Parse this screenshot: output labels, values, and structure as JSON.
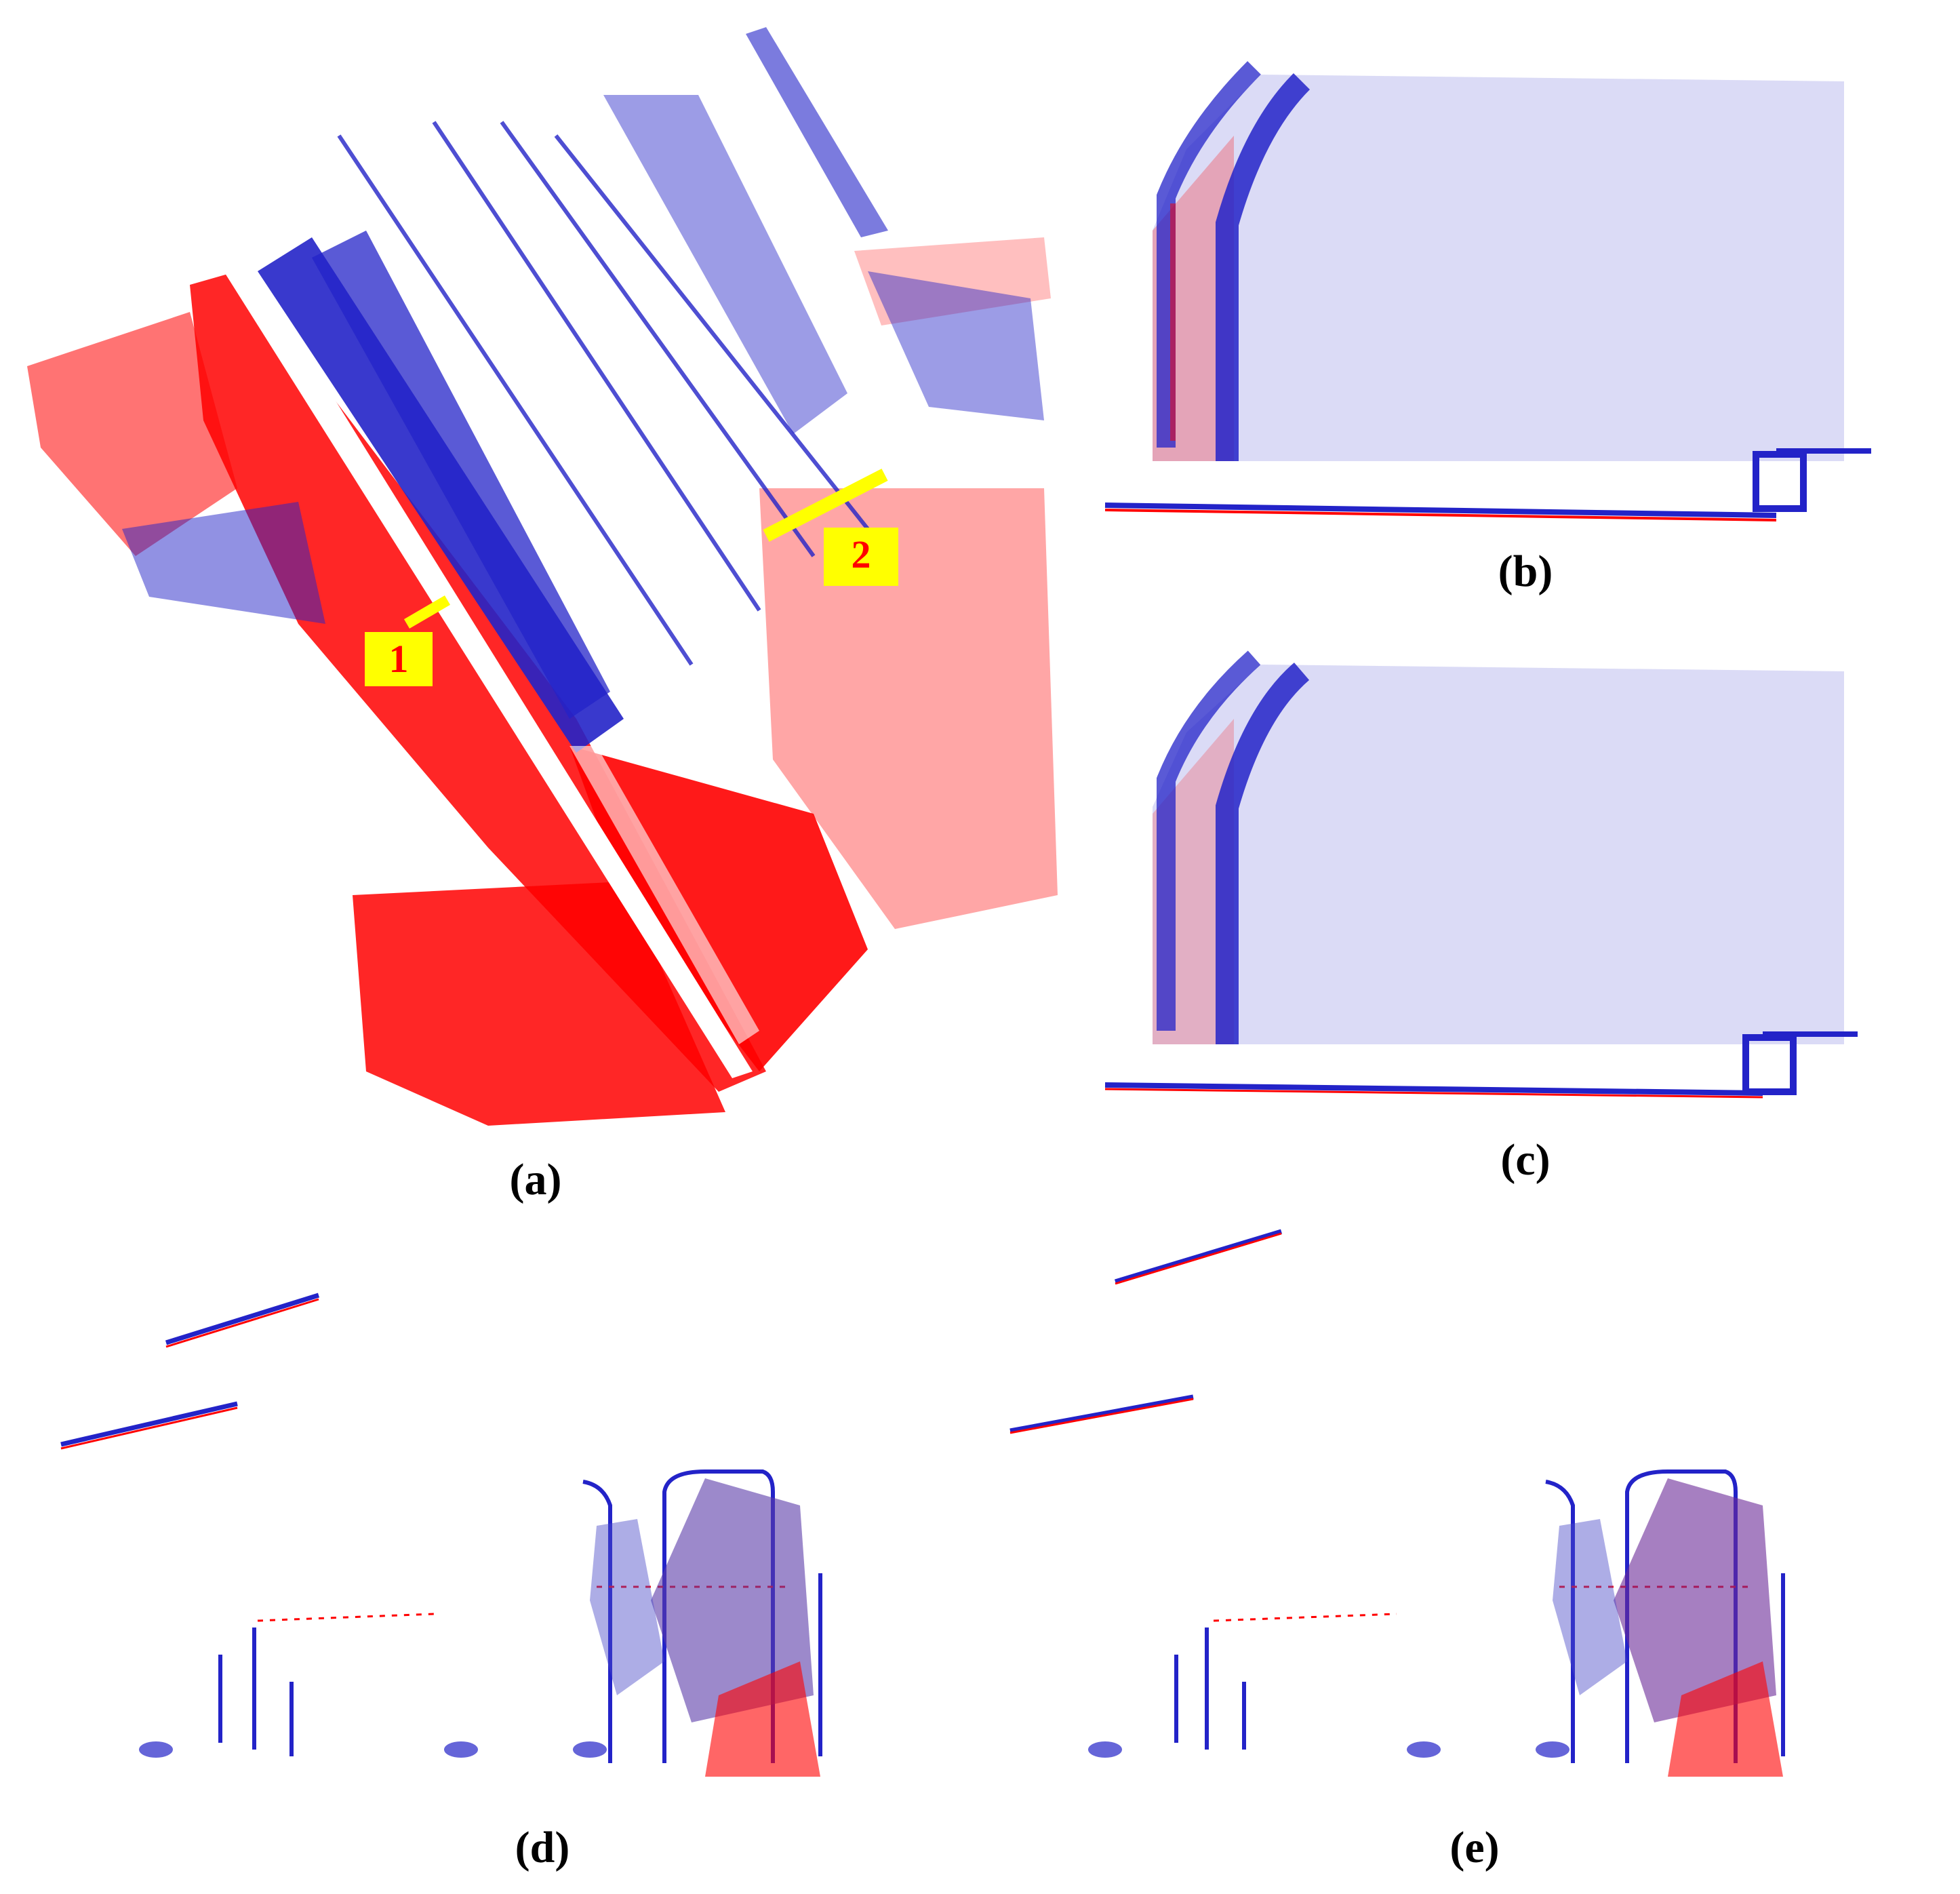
{
  "figure": {
    "colors": {
      "red": "#ff0000",
      "blue": "#2323c8",
      "marker": "#ffff00",
      "background": "#ffffff"
    },
    "panels": [
      {
        "id": "a",
        "caption": "(a)",
        "content": "top-down point cloud of street with two marked cross-sections"
      },
      {
        "id": "b",
        "caption": "(b)",
        "content": "side view point cloud of building facade"
      },
      {
        "id": "c",
        "caption": "(c)",
        "content": "side view point cloud of building facade after registration"
      },
      {
        "id": "d",
        "caption": "(d)",
        "content": "cross-section point cloud with trees and poles"
      },
      {
        "id": "e",
        "caption": "(e)",
        "content": "cross-section point cloud with trees and poles after registration"
      }
    ],
    "markers": [
      {
        "label": "1"
      },
      {
        "label": "2"
      }
    ]
  }
}
